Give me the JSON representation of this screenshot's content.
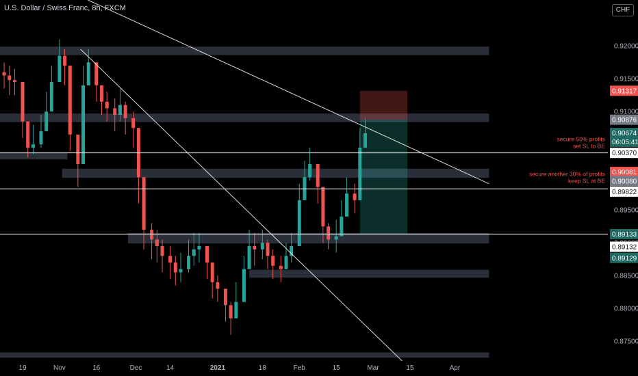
{
  "header": {
    "title": "U.S. Dollar / Swiss Franc, 8h, FXCM",
    "currency_button": "CHF"
  },
  "colors": {
    "background": "#000000",
    "up": "#26a69a",
    "down": "#ef5350",
    "zone": "#2a2e39",
    "line": "#ffffff",
    "annotation": "#ef5350"
  },
  "chart_data": {
    "type": "candlestick",
    "ylim": [
      0.872,
      0.927
    ],
    "y_ticks": [
      "0.92000",
      "0.91500",
      "0.91000",
      "0.90500",
      "0.90000",
      "0.89500",
      "0.89000",
      "0.88500",
      "0.88000",
      "0.87500"
    ],
    "x_ticks": [
      "19",
      "Nov",
      "16",
      "Dec",
      "14",
      "2021",
      "18",
      "Feb",
      "15",
      "Mar",
      "15",
      "Apr"
    ],
    "price_labels": [
      {
        "text": "0.91317",
        "price": 0.91317,
        "style": "red"
      },
      {
        "text": "0.90876",
        "price": 0.90876,
        "style": "gray"
      },
      {
        "text": "0.90674",
        "price": 0.90674,
        "style": "teal"
      },
      {
        "text": "06:05:41",
        "price": 0.9054,
        "style": "teal"
      },
      {
        "text": "0.90370",
        "price": 0.9037,
        "style": "white"
      },
      {
        "text": "0.90081",
        "price": 0.90081,
        "style": "red"
      },
      {
        "text": "0.90080",
        "price": 0.89942,
        "style": "gray"
      },
      {
        "text": "0.89822",
        "price": 0.8978,
        "style": "white"
      },
      {
        "text": "0.89133",
        "price": 0.89133,
        "style": "teal"
      },
      {
        "text": "0.89132",
        "price": 0.8894,
        "style": "white"
      },
      {
        "text": "0.89129",
        "price": 0.8877,
        "style": "teal"
      }
    ],
    "annotations": [
      {
        "lines": [
          "secure 50% profits",
          "set SL to BE"
        ],
        "price": 0.9055
      },
      {
        "lines": [
          "secure another 30% of profits",
          "keep SL at BE"
        ],
        "price": 0.9002
      }
    ],
    "horizontal_levels": [
      0.9037,
      0.89822,
      0.89133
    ],
    "zones": [
      {
        "from": "Sep 14",
        "to": "Apr 14",
        "top": 0.9199,
        "bottom": 0.9186
      },
      {
        "from": "Sep 14",
        "to": "Apr 14",
        "top": 0.9097,
        "bottom": 0.9084
      },
      {
        "from": "Sep 19",
        "to": "Nov 5",
        "top": 0.9037,
        "bottom": 0.9027
      },
      {
        "from": "Nov 3",
        "to": "Apr 14",
        "top": 0.9013,
        "bottom": 0.8999
      },
      {
        "from": "Nov 28",
        "to": "Apr 14",
        "top": 0.8915,
        "bottom": 0.8899
      },
      {
        "from": "Jan 13",
        "to": "Apr 14",
        "top": 0.8859,
        "bottom": 0.8847
      },
      {
        "from": "Sep 14",
        "to": "Apr 14",
        "top": 0.8733,
        "bottom": 0.8725
      }
    ],
    "trendlines": [
      {
        "from": {
          "date": "Sep 14",
          "price": 0.938
        },
        "to": {
          "date": "Apr 14",
          "price": 0.899
        }
      },
      {
        "from": {
          "date": "Nov 10",
          "price": 0.9195
        },
        "to": {
          "date": "Mar 12",
          "price": 0.872
        }
      }
    ],
    "position": {
      "from": "Feb 24",
      "to": "Mar 14",
      "entry": 0.90876,
      "stop": 0.91317,
      "target": 0.89133
    },
    "series": [
      {
        "date": "Oct 12",
        "close": 0.9155,
        "low": 0.9135,
        "high": 0.9175
      },
      {
        "date": "Oct 14",
        "close": 0.9148,
        "low": 0.9125,
        "high": 0.917
      },
      {
        "date": "Oct 16",
        "close": 0.9145,
        "low": 0.9125,
        "high": 0.9165
      },
      {
        "date": "Oct 19",
        "close": 0.9085,
        "low": 0.906,
        "high": 0.912
      },
      {
        "date": "Oct 21",
        "close": 0.9045,
        "low": 0.903,
        "high": 0.908
      },
      {
        "date": "Oct 23",
        "close": 0.905,
        "low": 0.9035,
        "high": 0.908
      },
      {
        "date": "Oct 26",
        "close": 0.907,
        "low": 0.9045,
        "high": 0.9095
      },
      {
        "date": "Oct 28",
        "close": 0.91,
        "low": 0.9075,
        "high": 0.913
      },
      {
        "date": "Oct 30",
        "close": 0.9145,
        "low": 0.9125,
        "high": 0.917
      },
      {
        "date": "Nov 2",
        "close": 0.9185,
        "low": 0.916,
        "high": 0.921
      },
      {
        "date": "Nov 4",
        "close": 0.917,
        "low": 0.914,
        "high": 0.9195
      },
      {
        "date": "Nov 6",
        "close": 0.9065,
        "low": 0.904,
        "high": 0.911
      },
      {
        "date": "Nov 9",
        "close": 0.902,
        "low": 0.8985,
        "high": 0.906
      },
      {
        "date": "Nov 11",
        "close": 0.914,
        "low": 0.911,
        "high": 0.917
      },
      {
        "date": "Nov 13",
        "close": 0.9175,
        "low": 0.915,
        "high": 0.9195
      },
      {
        "date": "Nov 16",
        "close": 0.914,
        "low": 0.9115,
        "high": 0.916
      },
      {
        "date": "Nov 18",
        "close": 0.9115,
        "low": 0.9095,
        "high": 0.914
      },
      {
        "date": "Nov 20",
        "close": 0.9105,
        "low": 0.9085,
        "high": 0.913
      },
      {
        "date": "Nov 23",
        "close": 0.9095,
        "low": 0.907,
        "high": 0.912
      },
      {
        "date": "Nov 25",
        "close": 0.911,
        "low": 0.9085,
        "high": 0.9135
      },
      {
        "date": "Nov 27",
        "close": 0.909,
        "low": 0.9065,
        "high": 0.9115
      },
      {
        "date": "Nov 30",
        "close": 0.9075,
        "low": 0.9045,
        "high": 0.91
      },
      {
        "date": "Dec 2",
        "close": 0.9,
        "low": 0.896,
        "high": 0.904
      },
      {
        "date": "Dec 4",
        "close": 0.892,
        "low": 0.889,
        "high": 0.896
      },
      {
        "date": "Dec 7",
        "close": 0.8905,
        "low": 0.8875,
        "high": 0.893
      },
      {
        "date": "Dec 9",
        "close": 0.8895,
        "low": 0.887,
        "high": 0.892
      },
      {
        "date": "Dec 11",
        "close": 0.888,
        "low": 0.8855,
        "high": 0.8905
      },
      {
        "date": "Dec 14",
        "close": 0.887,
        "low": 0.8845,
        "high": 0.8895
      },
      {
        "date": "Dec 16",
        "close": 0.8855,
        "low": 0.8835,
        "high": 0.888
      },
      {
        "date": "Dec 18",
        "close": 0.886,
        "low": 0.884,
        "high": 0.8885
      },
      {
        "date": "Dec 21",
        "close": 0.888,
        "low": 0.8855,
        "high": 0.8905
      },
      {
        "date": "Dec 23",
        "close": 0.889,
        "low": 0.8865,
        "high": 0.8915
      },
      {
        "date": "Dec 25",
        "close": 0.8895,
        "low": 0.887,
        "high": 0.8915
      },
      {
        "date": "Dec 28",
        "close": 0.887,
        "low": 0.8845,
        "high": 0.8895
      },
      {
        "date": "Dec 30",
        "close": 0.884,
        "low": 0.8815,
        "high": 0.8865
      },
      {
        "date": "Jan 1",
        "close": 0.883,
        "low": 0.881,
        "high": 0.885
      },
      {
        "date": "Jan 4",
        "close": 0.8805,
        "low": 0.878,
        "high": 0.883
      },
      {
        "date": "Jan 6",
        "close": 0.8785,
        "low": 0.876,
        "high": 0.881
      },
      {
        "date": "Jan 8",
        "close": 0.881,
        "low": 0.879,
        "high": 0.884
      },
      {
        "date": "Jan 11",
        "close": 0.886,
        "low": 0.8835,
        "high": 0.888
      },
      {
        "date": "Jan 13",
        "close": 0.8895,
        "low": 0.887,
        "high": 0.892
      },
      {
        "date": "Jan 15",
        "close": 0.889,
        "low": 0.8865,
        "high": 0.8915
      },
      {
        "date": "Jan 18",
        "close": 0.89,
        "low": 0.8875,
        "high": 0.892
      },
      {
        "date": "Jan 20",
        "close": 0.888,
        "low": 0.886,
        "high": 0.8905
      },
      {
        "date": "Jan 22",
        "close": 0.8865,
        "low": 0.8845,
        "high": 0.889
      },
      {
        "date": "Jan 25",
        "close": 0.886,
        "low": 0.884,
        "high": 0.888
      },
      {
        "date": "Jan 27",
        "close": 0.888,
        "low": 0.886,
        "high": 0.89
      },
      {
        "date": "Jan 29",
        "close": 0.8895,
        "low": 0.887,
        "high": 0.8915
      },
      {
        "date": "Feb 1",
        "close": 0.8965,
        "low": 0.894,
        "high": 0.899
      },
      {
        "date": "Feb 3",
        "close": 0.9,
        "low": 0.8975,
        "high": 0.9025
      },
      {
        "date": "Feb 5",
        "close": 0.902,
        "low": 0.8995,
        "high": 0.9045
      },
      {
        "date": "Feb 8",
        "close": 0.8985,
        "low": 0.896,
        "high": 0.901
      },
      {
        "date": "Feb 10",
        "close": 0.8925,
        "low": 0.89,
        "high": 0.895
      },
      {
        "date": "Feb 12",
        "close": 0.8905,
        "low": 0.889,
        "high": 0.893
      },
      {
        "date": "Feb 15",
        "close": 0.891,
        "low": 0.8885,
        "high": 0.8935
      },
      {
        "date": "Feb 17",
        "close": 0.894,
        "low": 0.891,
        "high": 0.8965
      },
      {
        "date": "Feb 19",
        "close": 0.8975,
        "low": 0.895,
        "high": 0.9
      },
      {
        "date": "Feb 22",
        "close": 0.8965,
        "low": 0.8945,
        "high": 0.899
      },
      {
        "date": "Feb 24",
        "close": 0.9045,
        "low": 0.902,
        "high": 0.9075
      },
      {
        "date": "Feb 26",
        "close": 0.9067,
        "low": 0.905,
        "high": 0.909
      }
    ]
  }
}
